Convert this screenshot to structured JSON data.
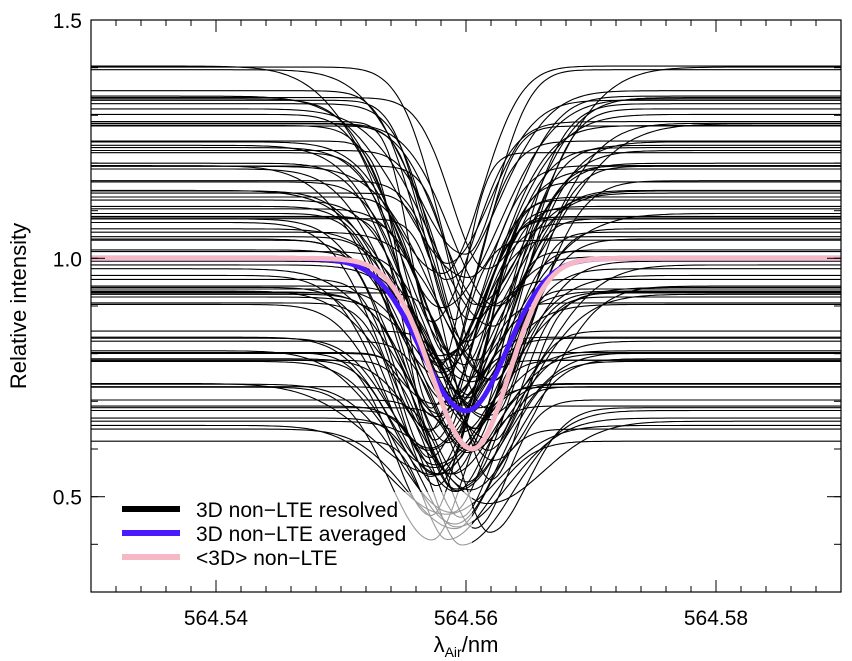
{
  "chart_data": {
    "type": "line",
    "xlabel": "λ",
    "xlabel_sub": "Air",
    "xlabel_suffix": "/nm",
    "ylabel": "Relative intensity",
    "xlim": [
      564.53,
      564.59
    ],
    "ylim": [
      0.3,
      1.5
    ],
    "xticks": [
      564.54,
      564.56,
      564.58
    ],
    "xtick_labels": [
      "564.54",
      "564.56",
      "564.58"
    ],
    "yticks": [
      0.5,
      1.0,
      1.5
    ],
    "ytick_labels": [
      "0.5",
      "1.0",
      "1.5"
    ],
    "grid": false,
    "legend_position": "bottom-left",
    "resolved_profiles": {
      "count": 90,
      "color": "#000000",
      "continuum_range": [
        0.61,
        1.42
      ],
      "line_center_range": [
        564.557,
        564.5625
      ],
      "relative_depth_range": [
        0.25,
        0.45
      ]
    },
    "series": [
      {
        "name": "3D non−LTE resolved",
        "color": "#000000",
        "legend_label": "3D non−LTE resolved"
      },
      {
        "name": "3D non−LTE averaged",
        "color": "#4a1aff",
        "continuum": 1.0,
        "center": 564.56,
        "minimum": 0.68,
        "legend_label": "3D non−LTE averaged"
      },
      {
        "name": "<3D> non−LTE",
        "color": "#f7b8c6",
        "continuum": 1.0,
        "center": 564.5605,
        "minimum": 0.6,
        "legend_label": "<3D> non−LTE"
      }
    ]
  }
}
